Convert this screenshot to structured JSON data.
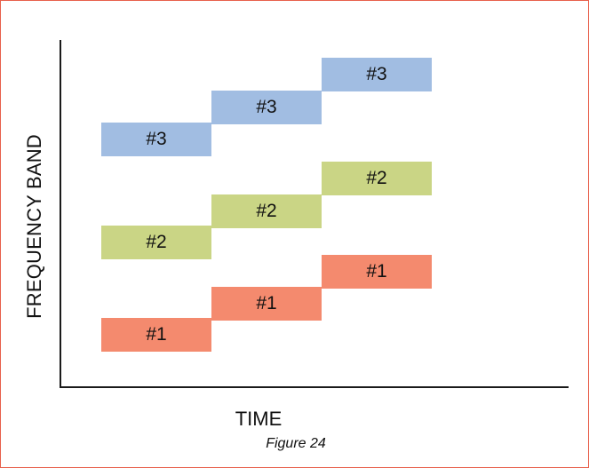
{
  "diagram": {
    "ylabel": "FREQUENCY BAND",
    "xlabel": "TIME",
    "caption": "Figure 24",
    "colors": {
      "frame": "#e8604c",
      "band1": "#f48a6e",
      "band2": "#cad585",
      "band3": "#a1bde2"
    },
    "blocks": [
      {
        "label": "#1",
        "band": 1,
        "slot": 1
      },
      {
        "label": "#1",
        "band": 1,
        "slot": 2
      },
      {
        "label": "#1",
        "band": 1,
        "slot": 3
      },
      {
        "label": "#2",
        "band": 2,
        "slot": 1
      },
      {
        "label": "#2",
        "band": 2,
        "slot": 2
      },
      {
        "label": "#2",
        "band": 2,
        "slot": 3
      },
      {
        "label": "#3",
        "band": 3,
        "slot": 1
      },
      {
        "label": "#3",
        "band": 3,
        "slot": 2
      },
      {
        "label": "#3",
        "band": 3,
        "slot": 3
      }
    ]
  }
}
